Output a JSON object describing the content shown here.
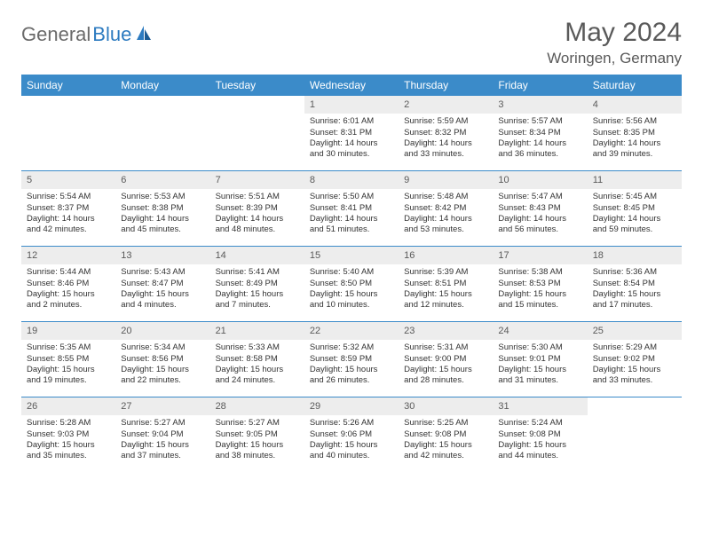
{
  "logo": {
    "part1": "General",
    "part2": "Blue"
  },
  "title": "May 2024",
  "location": "Woringen, Germany",
  "colors": {
    "header_bg": "#3b8bc9",
    "header_text": "#ffffff",
    "daynum_bg": "#ededed",
    "text": "#333333",
    "rule": "#3b8bc9",
    "logo_gray": "#6b6b6b",
    "logo_blue": "#2d7bc0"
  },
  "day_names": [
    "Sunday",
    "Monday",
    "Tuesday",
    "Wednesday",
    "Thursday",
    "Friday",
    "Saturday"
  ],
  "weeks": [
    [
      {
        "num": "",
        "empty": true
      },
      {
        "num": "",
        "empty": true
      },
      {
        "num": "",
        "empty": true
      },
      {
        "num": "1",
        "sunrise": "Sunrise: 6:01 AM",
        "sunset": "Sunset: 8:31 PM",
        "daylight": "Daylight: 14 hours and 30 minutes."
      },
      {
        "num": "2",
        "sunrise": "Sunrise: 5:59 AM",
        "sunset": "Sunset: 8:32 PM",
        "daylight": "Daylight: 14 hours and 33 minutes."
      },
      {
        "num": "3",
        "sunrise": "Sunrise: 5:57 AM",
        "sunset": "Sunset: 8:34 PM",
        "daylight": "Daylight: 14 hours and 36 minutes."
      },
      {
        "num": "4",
        "sunrise": "Sunrise: 5:56 AM",
        "sunset": "Sunset: 8:35 PM",
        "daylight": "Daylight: 14 hours and 39 minutes."
      }
    ],
    [
      {
        "num": "5",
        "sunrise": "Sunrise: 5:54 AM",
        "sunset": "Sunset: 8:37 PM",
        "daylight": "Daylight: 14 hours and 42 minutes."
      },
      {
        "num": "6",
        "sunrise": "Sunrise: 5:53 AM",
        "sunset": "Sunset: 8:38 PM",
        "daylight": "Daylight: 14 hours and 45 minutes."
      },
      {
        "num": "7",
        "sunrise": "Sunrise: 5:51 AM",
        "sunset": "Sunset: 8:39 PM",
        "daylight": "Daylight: 14 hours and 48 minutes."
      },
      {
        "num": "8",
        "sunrise": "Sunrise: 5:50 AM",
        "sunset": "Sunset: 8:41 PM",
        "daylight": "Daylight: 14 hours and 51 minutes."
      },
      {
        "num": "9",
        "sunrise": "Sunrise: 5:48 AM",
        "sunset": "Sunset: 8:42 PM",
        "daylight": "Daylight: 14 hours and 53 minutes."
      },
      {
        "num": "10",
        "sunrise": "Sunrise: 5:47 AM",
        "sunset": "Sunset: 8:43 PM",
        "daylight": "Daylight: 14 hours and 56 minutes."
      },
      {
        "num": "11",
        "sunrise": "Sunrise: 5:45 AM",
        "sunset": "Sunset: 8:45 PM",
        "daylight": "Daylight: 14 hours and 59 minutes."
      }
    ],
    [
      {
        "num": "12",
        "sunrise": "Sunrise: 5:44 AM",
        "sunset": "Sunset: 8:46 PM",
        "daylight": "Daylight: 15 hours and 2 minutes."
      },
      {
        "num": "13",
        "sunrise": "Sunrise: 5:43 AM",
        "sunset": "Sunset: 8:47 PM",
        "daylight": "Daylight: 15 hours and 4 minutes."
      },
      {
        "num": "14",
        "sunrise": "Sunrise: 5:41 AM",
        "sunset": "Sunset: 8:49 PM",
        "daylight": "Daylight: 15 hours and 7 minutes."
      },
      {
        "num": "15",
        "sunrise": "Sunrise: 5:40 AM",
        "sunset": "Sunset: 8:50 PM",
        "daylight": "Daylight: 15 hours and 10 minutes."
      },
      {
        "num": "16",
        "sunrise": "Sunrise: 5:39 AM",
        "sunset": "Sunset: 8:51 PM",
        "daylight": "Daylight: 15 hours and 12 minutes."
      },
      {
        "num": "17",
        "sunrise": "Sunrise: 5:38 AM",
        "sunset": "Sunset: 8:53 PM",
        "daylight": "Daylight: 15 hours and 15 minutes."
      },
      {
        "num": "18",
        "sunrise": "Sunrise: 5:36 AM",
        "sunset": "Sunset: 8:54 PM",
        "daylight": "Daylight: 15 hours and 17 minutes."
      }
    ],
    [
      {
        "num": "19",
        "sunrise": "Sunrise: 5:35 AM",
        "sunset": "Sunset: 8:55 PM",
        "daylight": "Daylight: 15 hours and 19 minutes."
      },
      {
        "num": "20",
        "sunrise": "Sunrise: 5:34 AM",
        "sunset": "Sunset: 8:56 PM",
        "daylight": "Daylight: 15 hours and 22 minutes."
      },
      {
        "num": "21",
        "sunrise": "Sunrise: 5:33 AM",
        "sunset": "Sunset: 8:58 PM",
        "daylight": "Daylight: 15 hours and 24 minutes."
      },
      {
        "num": "22",
        "sunrise": "Sunrise: 5:32 AM",
        "sunset": "Sunset: 8:59 PM",
        "daylight": "Daylight: 15 hours and 26 minutes."
      },
      {
        "num": "23",
        "sunrise": "Sunrise: 5:31 AM",
        "sunset": "Sunset: 9:00 PM",
        "daylight": "Daylight: 15 hours and 28 minutes."
      },
      {
        "num": "24",
        "sunrise": "Sunrise: 5:30 AM",
        "sunset": "Sunset: 9:01 PM",
        "daylight": "Daylight: 15 hours and 31 minutes."
      },
      {
        "num": "25",
        "sunrise": "Sunrise: 5:29 AM",
        "sunset": "Sunset: 9:02 PM",
        "daylight": "Daylight: 15 hours and 33 minutes."
      }
    ],
    [
      {
        "num": "26",
        "sunrise": "Sunrise: 5:28 AM",
        "sunset": "Sunset: 9:03 PM",
        "daylight": "Daylight: 15 hours and 35 minutes."
      },
      {
        "num": "27",
        "sunrise": "Sunrise: 5:27 AM",
        "sunset": "Sunset: 9:04 PM",
        "daylight": "Daylight: 15 hours and 37 minutes."
      },
      {
        "num": "28",
        "sunrise": "Sunrise: 5:27 AM",
        "sunset": "Sunset: 9:05 PM",
        "daylight": "Daylight: 15 hours and 38 minutes."
      },
      {
        "num": "29",
        "sunrise": "Sunrise: 5:26 AM",
        "sunset": "Sunset: 9:06 PM",
        "daylight": "Daylight: 15 hours and 40 minutes."
      },
      {
        "num": "30",
        "sunrise": "Sunrise: 5:25 AM",
        "sunset": "Sunset: 9:08 PM",
        "daylight": "Daylight: 15 hours and 42 minutes."
      },
      {
        "num": "31",
        "sunrise": "Sunrise: 5:24 AM",
        "sunset": "Sunset: 9:08 PM",
        "daylight": "Daylight: 15 hours and 44 minutes."
      },
      {
        "num": "",
        "empty": true
      }
    ]
  ]
}
